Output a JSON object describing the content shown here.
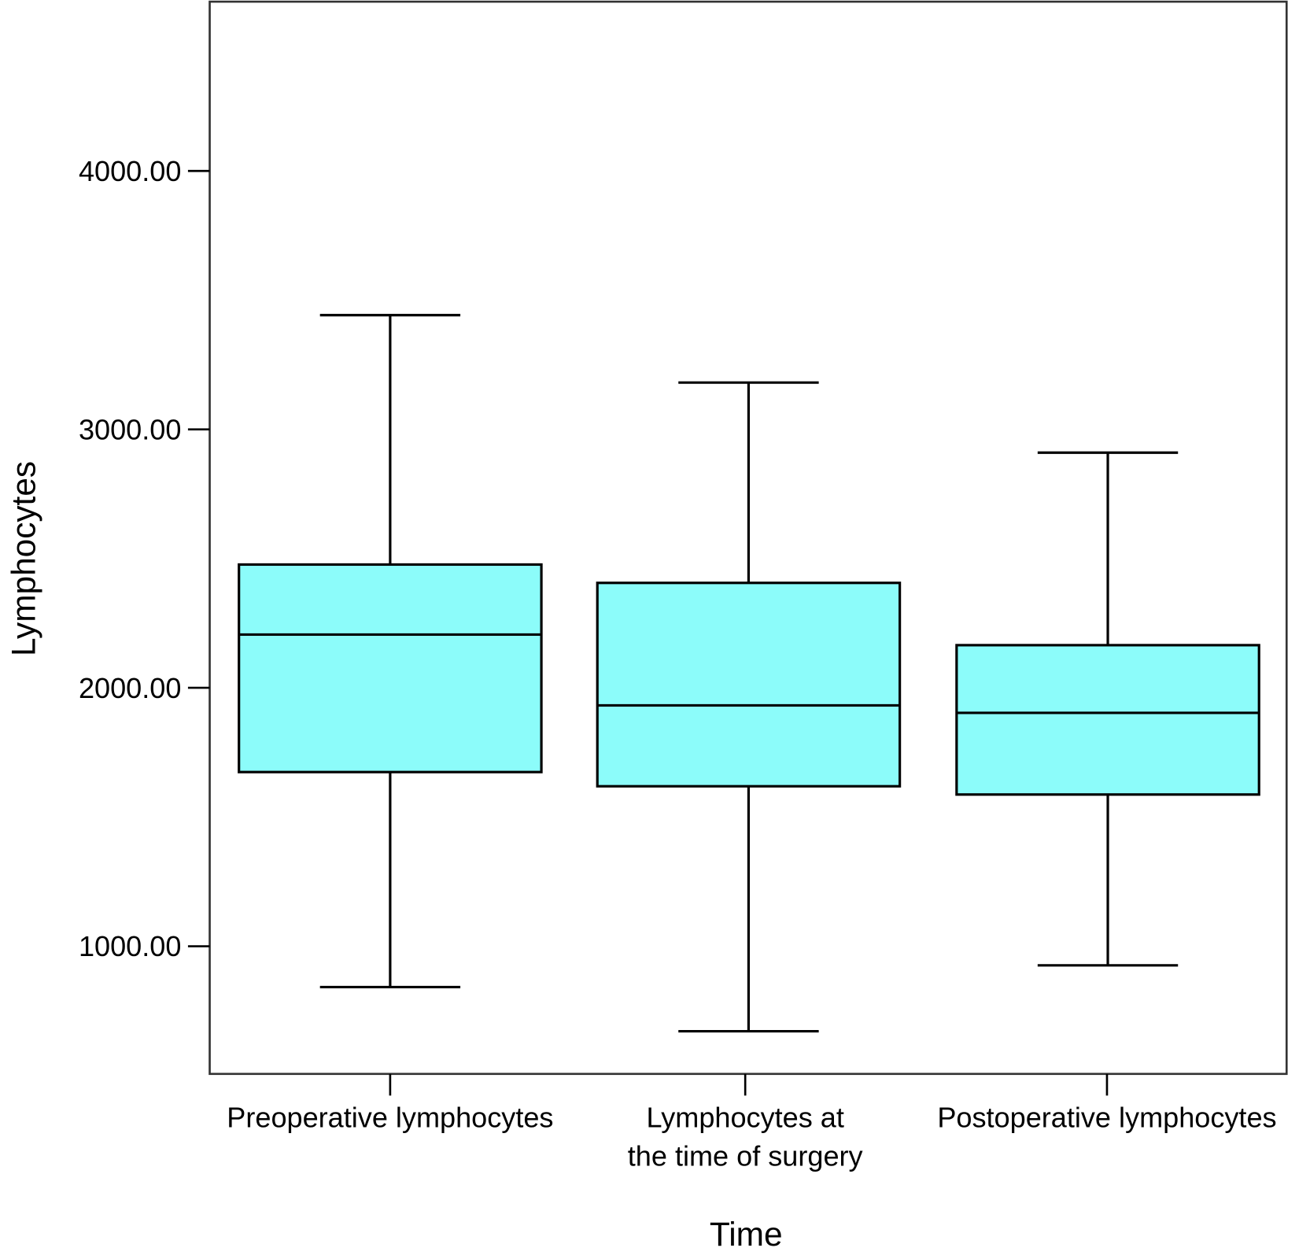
{
  "chart_data": {
    "type": "box",
    "title": "",
    "xlabel": "Time",
    "ylabel": "Lymphocytes",
    "ylim": [
      506,
      4655
    ],
    "yticks": [
      1000,
      2000,
      3000,
      4000
    ],
    "ytick_labels": [
      "1000.00",
      "2000.00",
      "3000.00",
      "4000.00"
    ],
    "grid": false,
    "box_color": "#8cfcfa",
    "categories": [
      [
        "Preoperative lymphocytes"
      ],
      [
        "Lymphocytes at",
        "the time of surgery"
      ],
      [
        "Postoperative lymphocytes"
      ]
    ],
    "series": [
      {
        "name": "Preoperative lymphocytes",
        "whisker_low": 842,
        "q1": 1674,
        "median": 2206,
        "q3": 2477,
        "whisker_high": 3442
      },
      {
        "name": "Lymphocytes at the time of surgery",
        "whisker_low": 671,
        "q1": 1619,
        "median": 1932,
        "q3": 2406,
        "whisker_high": 3181
      },
      {
        "name": "Postoperative lymphocytes",
        "whisker_low": 926,
        "q1": 1587,
        "median": 1903,
        "q3": 2165,
        "whisker_high": 2910
      }
    ]
  }
}
